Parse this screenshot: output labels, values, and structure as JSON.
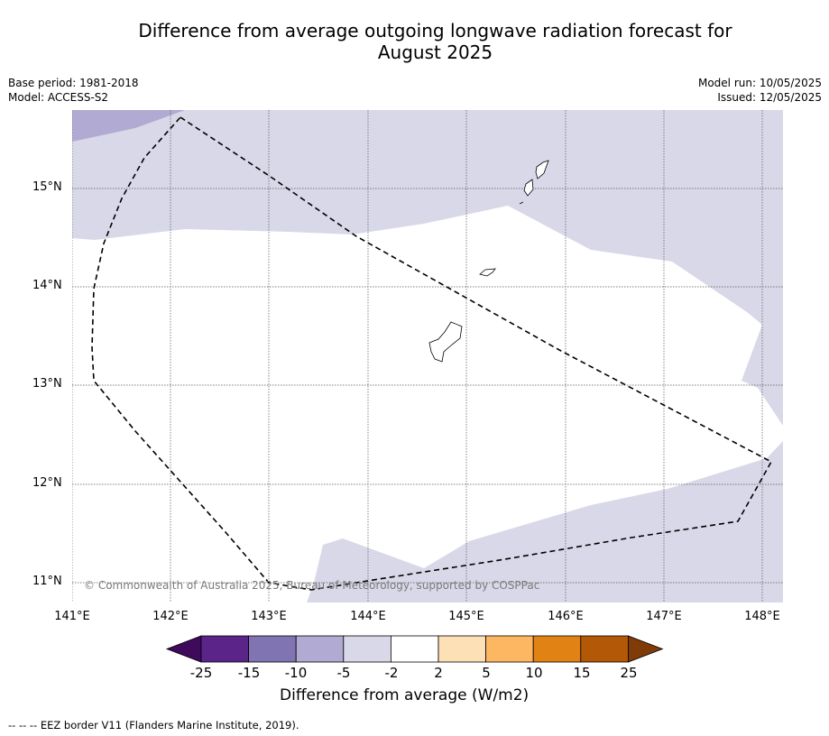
{
  "title_line1": "Difference from average outgoing longwave radiation forecast for",
  "title_line2": "August 2025",
  "meta_left": {
    "base_period": "Base period: 1981-2018",
    "model": "Model: ACCESS-S2"
  },
  "meta_right": {
    "model_run": "Model run: 10/05/2025",
    "issued": "Issued: 12/05/2025"
  },
  "map": {
    "lat_labels": [
      "15°N",
      "14°N",
      "13°N",
      "12°N",
      "11°N"
    ],
    "lon_labels": [
      "141°E",
      "142°E",
      "143°E",
      "144°E",
      "145°E",
      "146°E",
      "147°E",
      "148°E"
    ],
    "copyright": "© Commonwealth of Australia 2025, Bureau of Meteorology, supported by COSPPac",
    "colors": {
      "light_negative": "#d8d8e9",
      "moderate_negative": "#b1aad3",
      "land_outline": "#000000",
      "eez_line": "#000000",
      "gridline": "#555555"
    }
  },
  "colorbar": {
    "ticks": [
      "-25",
      "-15",
      "-10",
      "-5",
      "-2",
      "2",
      "5",
      "10",
      "15",
      "25"
    ],
    "colors": [
      "#3f0a5c",
      "#5a2489",
      "#8074b2",
      "#b1aad3",
      "#d8d8e9",
      "#ffffff",
      "#fde0b5",
      "#fdb762",
      "#e08214",
      "#b35806",
      "#7f3b08"
    ],
    "label": "Difference from average (W/m2)"
  },
  "footnote": "--  --  -- EEZ border V11 (Flanders Marine Institute, 2019)."
}
